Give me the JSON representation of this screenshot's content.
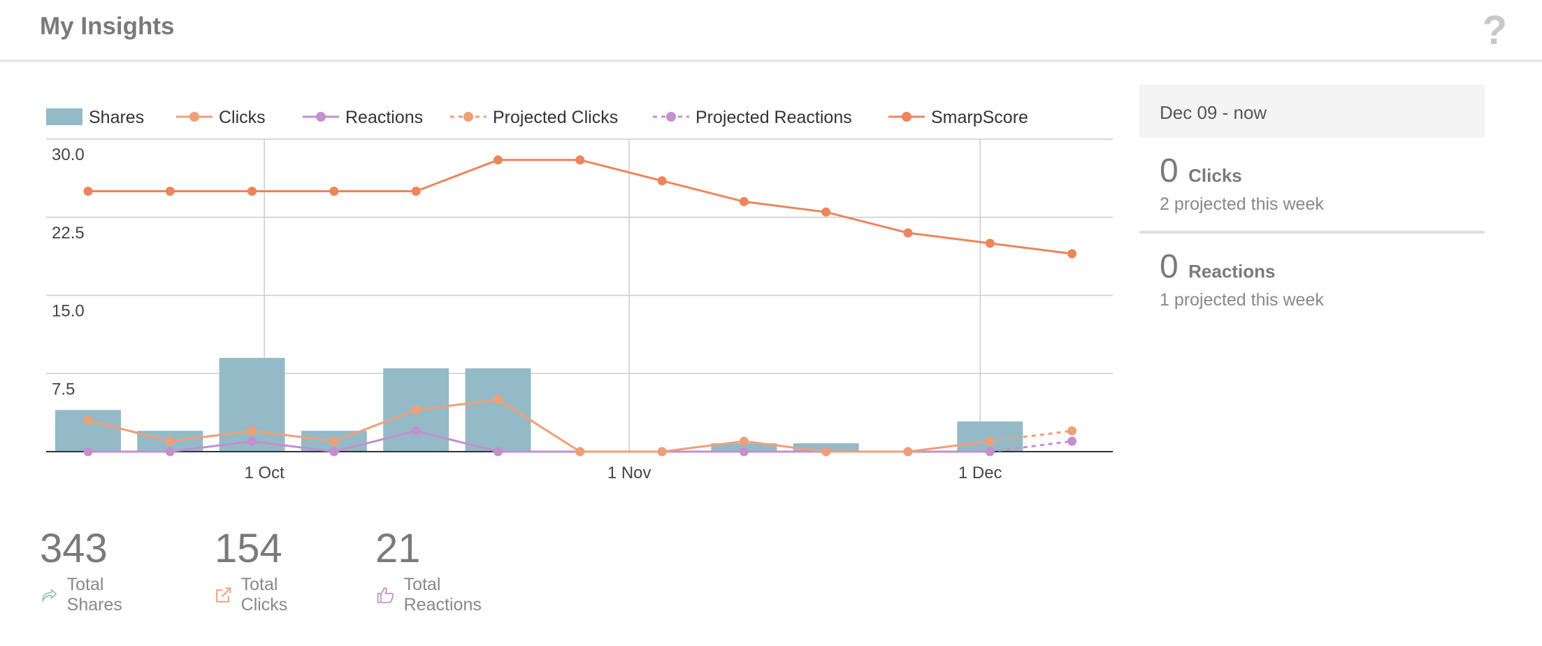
{
  "header": {
    "title": "My Insights",
    "help": "?"
  },
  "side": {
    "range": "Dec 09 - now",
    "clicks": {
      "value": "0",
      "label": "Clicks",
      "sub": "2 projected this week"
    },
    "reactions": {
      "value": "0",
      "label": "Reactions",
      "sub": "1 projected this week"
    }
  },
  "totals": {
    "shares": {
      "value": "343",
      "label": "Total Shares"
    },
    "clicks": {
      "value": "154",
      "label": "Total Clicks"
    },
    "reactions": {
      "value": "21",
      "label": "Total Reactions"
    }
  },
  "colors": {
    "shares": "#94bac8",
    "clicks": "#ef9f77",
    "reactions": "#c48fcf",
    "smarpscore": "#ee845c",
    "grid": "#cccccc"
  },
  "chart_data": {
    "type": "bar",
    "ylim": [
      0,
      30
    ],
    "yticks": [
      "30.0",
      "22.5",
      "15.0",
      "7.5"
    ],
    "yticks_values": [
      30,
      22.5,
      15,
      7.5
    ],
    "xlabels": [
      "1 Oct",
      "1 Nov",
      "1 Dec"
    ],
    "xlabel_positions": [
      2.15,
      6.6,
      10.88
    ],
    "legend": [
      "Shares",
      "Clicks",
      "Reactions",
      "Projected Clicks",
      "Projected Reactions",
      "SmarpScore"
    ],
    "grid": true,
    "legend_position": "top",
    "week_index": [
      0,
      1,
      2,
      3,
      4,
      5,
      6,
      7,
      8,
      9,
      10,
      11,
      12
    ],
    "series": [
      {
        "name": "Shares",
        "kind": "bar",
        "values": [
          4,
          2,
          9,
          2,
          8,
          8,
          0,
          0,
          0.8,
          0.8,
          0,
          2.9,
          null
        ]
      },
      {
        "name": "Clicks",
        "kind": "line",
        "values": [
          3,
          1,
          2,
          1,
          4,
          5,
          0,
          0,
          1,
          0,
          0,
          1,
          null
        ]
      },
      {
        "name": "Reactions",
        "kind": "line",
        "values": [
          0,
          0,
          1,
          0,
          2,
          0,
          0,
          0,
          0,
          0,
          0,
          0,
          null
        ]
      },
      {
        "name": "Projected Clicks",
        "kind": "projected",
        "values": [
          null,
          null,
          null,
          null,
          null,
          null,
          null,
          null,
          null,
          null,
          null,
          1,
          2
        ]
      },
      {
        "name": "Projected Reactions",
        "kind": "projected",
        "values": [
          null,
          null,
          null,
          null,
          null,
          null,
          null,
          null,
          null,
          null,
          null,
          0,
          1
        ]
      },
      {
        "name": "SmarpScore",
        "kind": "line",
        "values": [
          25,
          25,
          25,
          25,
          25,
          28,
          28,
          26,
          24,
          23,
          21,
          20,
          19
        ]
      }
    ]
  }
}
